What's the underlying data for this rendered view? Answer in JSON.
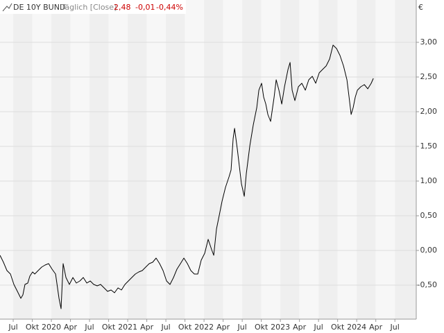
{
  "chart_data": {
    "type": "line",
    "title": "DE 10Y BUND",
    "subtitle": "Täglich [Close]",
    "header_values": [
      "2,48",
      "-0,01",
      "-0,44%"
    ],
    "y_unit": "€",
    "grid": true,
    "xlim": [
      2019.327,
      2024.78
    ],
    "ylim": [
      -0.99,
      3.61
    ],
    "xticks": [
      {
        "value": 2019.5,
        "label": "Jul"
      },
      {
        "value": 2019.75,
        "label": "Okt"
      },
      {
        "value": 2020.0,
        "label": "2020"
      },
      {
        "value": 2020.25,
        "label": "Apr"
      },
      {
        "value": 2020.5,
        "label": "Jul"
      },
      {
        "value": 2020.75,
        "label": "Okt"
      },
      {
        "value": 2021.0,
        "label": "2021"
      },
      {
        "value": 2021.25,
        "label": "Apr"
      },
      {
        "value": 2021.5,
        "label": "Jul"
      },
      {
        "value": 2021.75,
        "label": "Okt"
      },
      {
        "value": 2022.0,
        "label": "2022"
      },
      {
        "value": 2022.25,
        "label": "Apr"
      },
      {
        "value": 2022.5,
        "label": "Jul"
      },
      {
        "value": 2022.75,
        "label": "Okt"
      },
      {
        "value": 2023.0,
        "label": "2023"
      },
      {
        "value": 2023.25,
        "label": "Apr"
      },
      {
        "value": 2023.5,
        "label": "Jul"
      },
      {
        "value": 2023.75,
        "label": "Okt"
      },
      {
        "value": 2024.0,
        "label": "2024"
      },
      {
        "value": 2024.25,
        "label": "Apr"
      },
      {
        "value": 2024.5,
        "label": "Jul"
      }
    ],
    "yticks": [
      {
        "value": -0.5,
        "label": "-0,50"
      },
      {
        "value": 0,
        "label": "0,00"
      },
      {
        "value": 0.5,
        "label": "0,50"
      },
      {
        "value": 1,
        "label": "1,00"
      },
      {
        "value": 1.5,
        "label": "1,50"
      },
      {
        "value": 2,
        "label": "2,00"
      },
      {
        "value": 2.5,
        "label": "2,50"
      },
      {
        "value": 3,
        "label": "3,00"
      }
    ],
    "x": [
      2019.327,
      2019.372,
      2019.418,
      2019.464,
      2019.509,
      2019.555,
      2019.6,
      2019.627,
      2019.654,
      2019.691,
      2019.718,
      2019.754,
      2019.782,
      2019.827,
      2019.873,
      2019.918,
      2019.964,
      2020.009,
      2020.055,
      2020.1,
      2020.127,
      2020.154,
      2020.191,
      2020.236,
      2020.282,
      2020.327,
      2020.373,
      2020.418,
      2020.464,
      2020.509,
      2020.555,
      2020.6,
      2020.645,
      2020.691,
      2020.736,
      2020.782,
      2020.827,
      2020.873,
      2020.918,
      2020.964,
      2021.009,
      2021.054,
      2021.1,
      2021.145,
      2021.191,
      2021.236,
      2021.282,
      2021.327,
      2021.372,
      2021.418,
      2021.463,
      2021.509,
      2021.554,
      2021.6,
      2021.645,
      2021.691,
      2021.736,
      2021.782,
      2021.827,
      2021.873,
      2021.918,
      2021.963,
      2022.009,
      2022.054,
      2022.1,
      2022.127,
      2022.163,
      2022.2,
      2022.236,
      2022.281,
      2022.327,
      2022.354,
      2022.381,
      2022.4,
      2022.436,
      2022.463,
      2022.49,
      2022.527,
      2022.554,
      2022.6,
      2022.645,
      2022.691,
      2022.718,
      2022.754,
      2022.781,
      2022.809,
      2022.836,
      2022.872,
      2022.918,
      2022.945,
      2022.981,
      2023.018,
      2023.054,
      2023.1,
      2023.127,
      2023.154,
      2023.19,
      2023.236,
      2023.281,
      2023.327,
      2023.372,
      2023.418,
      2023.463,
      2023.509,
      2023.554,
      2023.6,
      2023.645,
      2023.69,
      2023.736,
      2023.781,
      2023.827,
      2023.872,
      2023.9,
      2023.927,
      2023.954,
      2023.981,
      2024.009,
      2024.054,
      2024.1,
      2024.145,
      2024.19,
      2024.218
    ],
    "series": [
      {
        "name": "DE 10Y BUND",
        "color": "#000000",
        "values": [
          -0.07,
          -0.17,
          -0.29,
          -0.34,
          -0.49,
          -0.59,
          -0.69,
          -0.64,
          -0.49,
          -0.47,
          -0.37,
          -0.31,
          -0.34,
          -0.29,
          -0.24,
          -0.21,
          -0.19,
          -0.27,
          -0.34,
          -0.69,
          -0.84,
          -0.19,
          -0.39,
          -0.49,
          -0.39,
          -0.47,
          -0.44,
          -0.39,
          -0.47,
          -0.44,
          -0.49,
          -0.51,
          -0.49,
          -0.54,
          -0.59,
          -0.57,
          -0.61,
          -0.54,
          -0.57,
          -0.49,
          -0.44,
          -0.39,
          -0.34,
          -0.31,
          -0.29,
          -0.24,
          -0.19,
          -0.17,
          -0.11,
          -0.19,
          -0.29,
          -0.44,
          -0.49,
          -0.39,
          -0.27,
          -0.19,
          -0.11,
          -0.19,
          -0.29,
          -0.34,
          -0.34,
          -0.14,
          -0.04,
          0.16,
          0.01,
          -0.07,
          0.31,
          0.51,
          0.71,
          0.91,
          1.06,
          1.16,
          1.61,
          1.76,
          1.46,
          1.21,
          0.96,
          0.78,
          1.11,
          1.51,
          1.81,
          2.06,
          2.31,
          2.41,
          2.21,
          2.11,
          1.96,
          1.86,
          2.21,
          2.46,
          2.31,
          2.11,
          2.36,
          2.61,
          2.71,
          2.31,
          2.16,
          2.36,
          2.41,
          2.31,
          2.46,
          2.51,
          2.41,
          2.56,
          2.61,
          2.66,
          2.76,
          2.96,
          2.91,
          2.81,
          2.66,
          2.46,
          2.21,
          1.96,
          2.06,
          2.21,
          2.31,
          2.36,
          2.39,
          2.33,
          2.41,
          2.48
        ]
      }
    ]
  }
}
